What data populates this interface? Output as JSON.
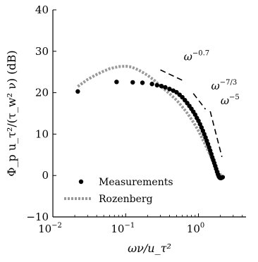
{
  "chart_data": {
    "type": "scatter",
    "xscale": "log",
    "xlim": [
      0.01,
      4.5
    ],
    "ylim": [
      -10,
      40
    ],
    "xlabel": "ων/u_τ²",
    "ylabel": "Φ_p u_τ²/(τ_w² ν) (dB)",
    "x_ticks": [
      {
        "value": 0.01,
        "label": "10",
        "exp": "−2"
      },
      {
        "value": 0.1,
        "label": "10",
        "exp": "−1"
      },
      {
        "value": 1,
        "label": "10",
        "exp": "0"
      }
    ],
    "y_ticks": [
      {
        "value": -10,
        "label": "−10"
      },
      {
        "value": 0,
        "label": "0"
      },
      {
        "value": 10,
        "label": "10"
      },
      {
        "value": 20,
        "label": "20"
      },
      {
        "value": 30,
        "label": "30"
      },
      {
        "value": 40,
        "label": "40"
      }
    ],
    "legend_position": "bottom-left",
    "series": [
      {
        "name": "Measurements",
        "style": "points",
        "color": "#000000",
        "x": [
          0.022,
          0.075,
          0.125,
          0.17,
          0.23,
          0.27,
          0.31,
          0.35,
          0.4,
          0.45,
          0.5,
          0.55,
          0.6,
          0.65,
          0.7,
          0.75,
          0.8,
          0.85,
          0.9,
          0.95,
          1.0,
          1.05,
          1.1,
          1.15,
          1.2,
          1.25,
          1.3,
          1.35,
          1.4,
          1.45,
          1.5,
          1.55,
          1.6,
          1.65,
          1.7,
          1.75,
          1.8,
          1.85,
          1.9,
          1.95,
          2.0,
          2.05,
          2.1,
          2.15
        ],
        "y": [
          20.3,
          22.6,
          22.5,
          22.4,
          22.1,
          21.8,
          21.6,
          21.3,
          20.9,
          20.5,
          20.1,
          19.5,
          18.9,
          18.2,
          17.5,
          16.8,
          16.1,
          15.4,
          14.7,
          13.9,
          13.2,
          12.4,
          11.6,
          10.8,
          10.0,
          9.2,
          8.4,
          7.6,
          6.8,
          6.0,
          5.2,
          4.4,
          3.7,
          3.0,
          2.3,
          1.6,
          0.9,
          0.3,
          -0.2,
          -0.5,
          -0.6,
          -0.6,
          -0.5,
          -0.4
        ]
      },
      {
        "name": "Rozenberg",
        "style": "dotted-line",
        "color": "#999999",
        "x": [
          0.022,
          0.03,
          0.04,
          0.05,
          0.06,
          0.08,
          0.1,
          0.12,
          0.15,
          0.2,
          0.25,
          0.3,
          0.4,
          0.5,
          0.6,
          0.7,
          0.8,
          0.9,
          1.0,
          1.2,
          1.4,
          1.6,
          1.8,
          2.0,
          2.1
        ],
        "y": [
          21.5,
          23.2,
          24.4,
          25.2,
          25.8,
          26.3,
          26.4,
          26.2,
          25.5,
          24.2,
          22.9,
          21.6,
          19.8,
          18.2,
          16.6,
          15.1,
          13.6,
          12.2,
          10.8,
          8.0,
          5.5,
          3.2,
          1.4,
          0.2,
          -0.3
        ]
      }
    ],
    "annotations": [
      {
        "text": "ω",
        "exp": "−0.7",
        "x": [
          0.3,
          0.6
        ],
        "y": [
          25.5,
          23.0
        ]
      },
      {
        "text": "ω",
        "exp": "−7/3",
        "x": [
          0.85,
          1.25
        ],
        "y": [
          19.8,
          16.0
        ]
      },
      {
        "text": "ω",
        "exp": "−5",
        "x": [
          1.45,
          2.1
        ],
        "y": [
          15.5,
          4.5
        ]
      }
    ]
  }
}
